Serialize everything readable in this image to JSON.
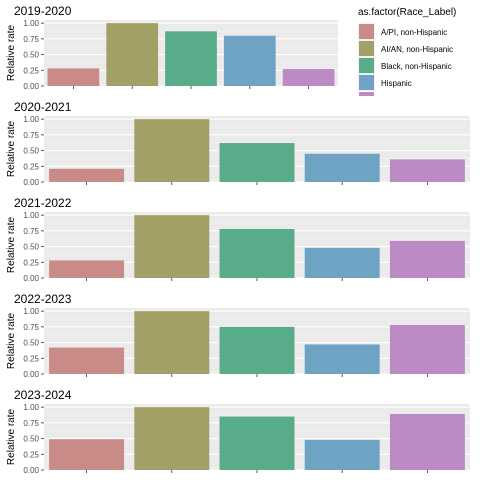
{
  "chart_data": {
    "type": "bar",
    "ylabel": "Relative rate",
    "ylim": [
      0,
      1.05
    ],
    "yticks": [
      "0.00",
      "0.25",
      "0.50",
      "0.75",
      "1.00"
    ],
    "grid": true,
    "legend": {
      "title": "as.factor(Race_Label)",
      "placement": "right",
      "entries": [
        {
          "name": "A/PI, non-Hispanic",
          "color": "#c98b87"
        },
        {
          "name": "AI/AN, non-Hispanic",
          "color": "#a2a066"
        },
        {
          "name": "Black, non-Hispanic",
          "color": "#59ac8a"
        },
        {
          "name": "Hispanic",
          "color": "#6fa3c4"
        }
      ],
      "clipped_color": "#bc8bc6"
    },
    "series_colors": [
      "#c98b87",
      "#a2a066",
      "#59ac8a",
      "#6fa3c4",
      "#bc8bc6"
    ],
    "panels": [
      {
        "title": "2019-2020",
        "values": [
          0.28,
          1.0,
          0.87,
          0.8,
          0.27
        ]
      },
      {
        "title": "2020-2021",
        "values": [
          0.21,
          1.0,
          0.62,
          0.45,
          0.36
        ]
      },
      {
        "title": "2021-2022",
        "values": [
          0.28,
          1.0,
          0.78,
          0.48,
          0.59
        ]
      },
      {
        "title": "2022-2023",
        "values": [
          0.42,
          1.0,
          0.75,
          0.47,
          0.78
        ]
      },
      {
        "title": "2023-2024",
        "values": [
          0.49,
          1.0,
          0.85,
          0.48,
          0.89
        ]
      }
    ]
  }
}
